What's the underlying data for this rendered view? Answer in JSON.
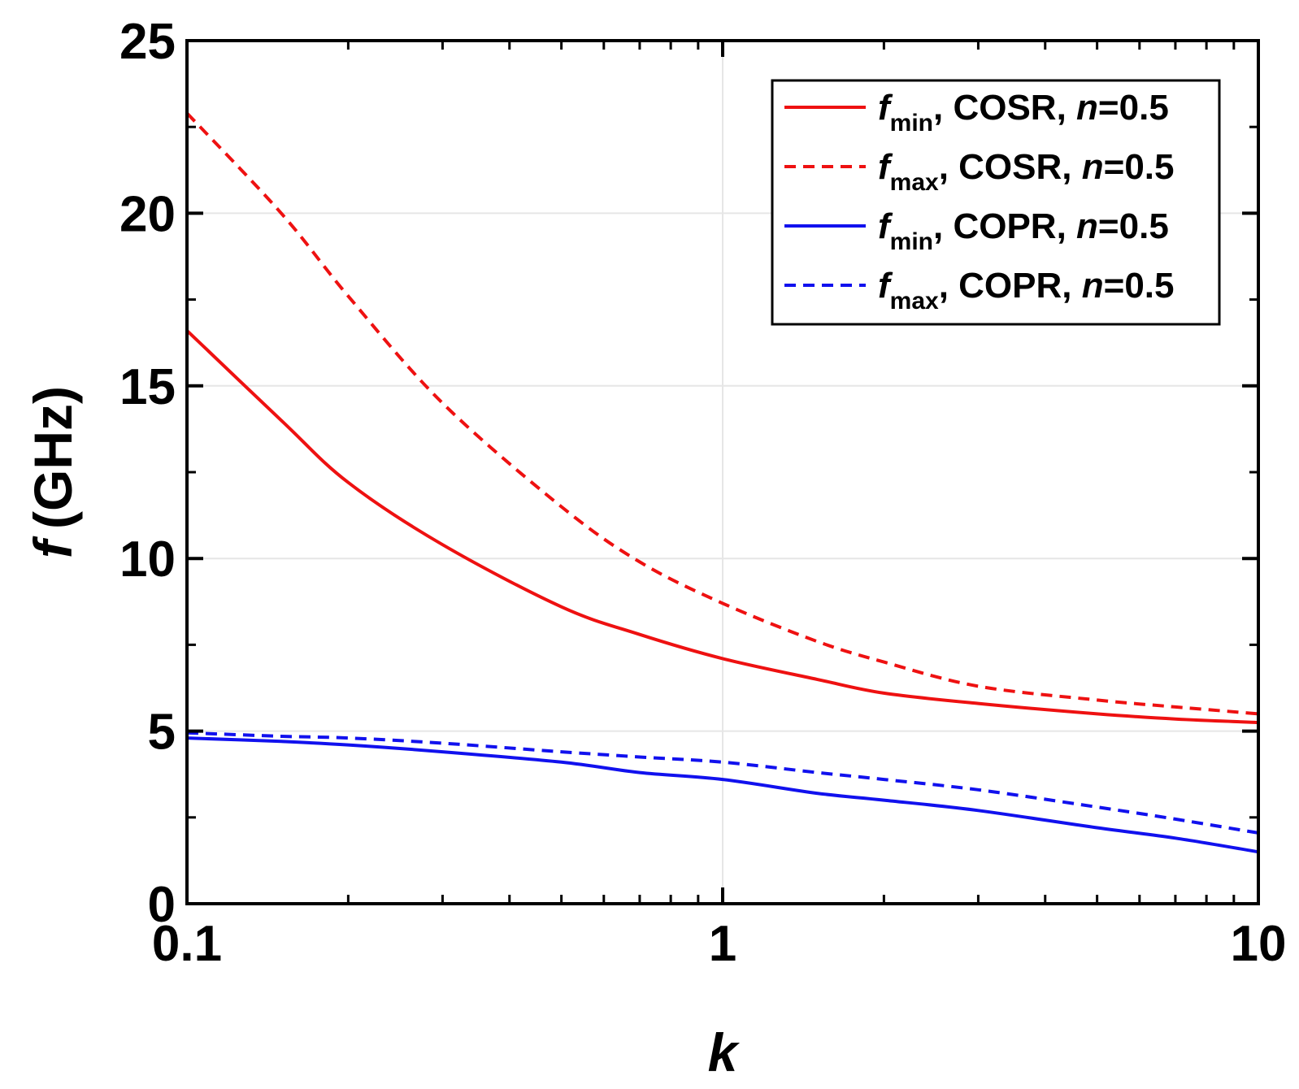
{
  "chart_data": {
    "type": "line",
    "title": "",
    "xlabel": "k",
    "ylabel_var": "f",
    "ylabel_unit": "(GHz)",
    "xscale": "log",
    "xlim": [
      0.1,
      10
    ],
    "ylim": [
      0,
      25
    ],
    "xticks": [
      0.1,
      1,
      10
    ],
    "xtick_labels": [
      "0.1",
      "1",
      "10"
    ],
    "yticks": [
      0,
      5,
      10,
      15,
      20,
      25
    ],
    "ytick_labels": [
      "0",
      "5",
      "10",
      "15",
      "20",
      "25"
    ],
    "grid": true,
    "legend_position": "top-right",
    "x": [
      0.1,
      0.15,
      0.2,
      0.3,
      0.5,
      0.7,
      1,
      1.5,
      2,
      3,
      5,
      7,
      10
    ],
    "series": [
      {
        "name": "f_min, COSR, n=0.5",
        "legend": {
          "var": "f",
          "sub": "min",
          "text": ", COSR, ",
          "param": "n",
          "value": "=0.5"
        },
        "color": "#ee1111",
        "dash": "solid",
        "values": [
          16.6,
          14.0,
          12.2,
          10.4,
          8.6,
          7.8,
          7.1,
          6.5,
          6.1,
          5.8,
          5.5,
          5.35,
          5.25
        ]
      },
      {
        "name": "f_max, COSR, n=0.5",
        "legend": {
          "var": "f",
          "sub": "max",
          "text": ", COSR, ",
          "param": "n",
          "value": "=0.5"
        },
        "color": "#ee1111",
        "dash": "dashed",
        "values": [
          22.9,
          20.0,
          17.6,
          14.5,
          11.5,
          9.9,
          8.7,
          7.6,
          7.0,
          6.3,
          5.9,
          5.7,
          5.5
        ]
      },
      {
        "name": "f_min, COPR, n=0.5",
        "legend": {
          "var": "f",
          "sub": "min",
          "text": ", COPR, ",
          "param": "n",
          "value": "=0.5"
        },
        "color": "#1111ee",
        "dash": "solid",
        "values": [
          4.8,
          4.7,
          4.6,
          4.4,
          4.1,
          3.8,
          3.6,
          3.2,
          3.0,
          2.7,
          2.2,
          1.9,
          1.5
        ]
      },
      {
        "name": "f_max, COPR, n=0.5",
        "legend": {
          "var": "f",
          "sub": "max",
          "text": ", COPR, ",
          "param": "n",
          "value": "=0.5"
        },
        "color": "#1111ee",
        "dash": "dashed",
        "values": [
          4.95,
          4.85,
          4.8,
          4.65,
          4.4,
          4.25,
          4.1,
          3.8,
          3.6,
          3.3,
          2.8,
          2.45,
          2.05
        ]
      }
    ]
  }
}
